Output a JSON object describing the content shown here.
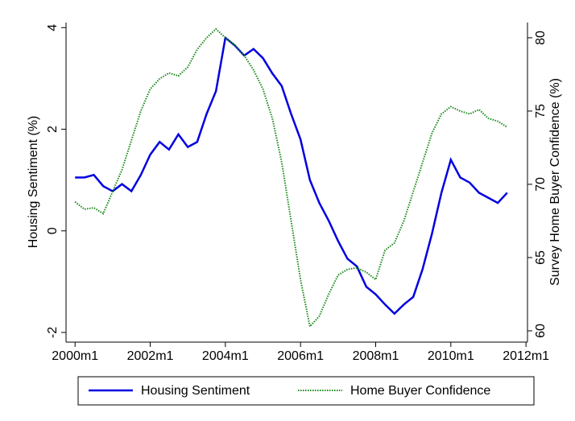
{
  "chart_data": {
    "type": "line",
    "y_label": "Housing Sentiment (%)",
    "y2_label": "Survey Home Buyer Confidence (%)",
    "x": [
      2000,
      2000.25,
      2000.5,
      2000.75,
      2001,
      2001.25,
      2001.5,
      2001.75,
      2002,
      2002.25,
      2002.5,
      2002.75,
      2003,
      2003.25,
      2003.5,
      2003.75,
      2004,
      2004.25,
      2004.5,
      2004.75,
      2005,
      2005.25,
      2005.5,
      2005.75,
      2006,
      2006.25,
      2006.5,
      2006.75,
      2007,
      2007.25,
      2007.5,
      2007.75,
      2008,
      2008.25,
      2008.5,
      2008.75,
      2009,
      2009.25,
      2009.5,
      2009.75,
      2010,
      2010.25,
      2010.5,
      2010.75,
      2011,
      2011.25,
      2011.5
    ],
    "series": [
      {
        "name": "Housing Sentiment",
        "color": "#0000e0",
        "style": "solid",
        "axis": "y",
        "values": [
          1.05,
          1.05,
          1.1,
          0.88,
          0.78,
          0.92,
          0.78,
          1.1,
          1.5,
          1.75,
          1.6,
          1.9,
          1.65,
          1.75,
          2.3,
          2.75,
          3.8,
          3.65,
          3.45,
          3.58,
          3.4,
          3.1,
          2.85,
          2.3,
          1.8,
          1.0,
          0.55,
          0.2,
          -0.2,
          -0.55,
          -0.7,
          -1.1,
          -1.25,
          -1.45,
          -1.63,
          -1.45,
          -1.3,
          -0.75,
          -0.05,
          0.75,
          1.4,
          1.05,
          0.95,
          0.75,
          0.65,
          0.55,
          0.75
        ]
      },
      {
        "name": "Home Buyer Confidence",
        "color": "#1a8a1a",
        "style": "dotted",
        "axis": "y2",
        "values": [
          68.8,
          68.3,
          68.4,
          68.0,
          69.5,
          71,
          73,
          75,
          76.5,
          77.2,
          77.6,
          77.4,
          78,
          79.2,
          80,
          80.6,
          80.0,
          79.5,
          78.8,
          77.8,
          76.5,
          74.5,
          71.5,
          67.5,
          63.5,
          60.3,
          61.0,
          62.5,
          63.8,
          64.2,
          64.3,
          64.0,
          63.5,
          65.5,
          66,
          67.5,
          69.5,
          71.5,
          73.5,
          74.8,
          75.3,
          75,
          74.8,
          75.1,
          74.5,
          74.3,
          73.9
        ]
      }
    ],
    "xlim": [
      1999.76,
      2012.04
    ],
    "xticks": [
      {
        "value": 2000,
        "label": "2000m1"
      },
      {
        "value": 2002,
        "label": "2002m1"
      },
      {
        "value": 2004,
        "label": "2004m1"
      },
      {
        "value": 2006,
        "label": "2006m1"
      },
      {
        "value": 2008,
        "label": "2008m1"
      },
      {
        "value": 2010,
        "label": "2010m1"
      },
      {
        "value": 2012,
        "label": "2012m1"
      }
    ],
    "ylim": [
      -2.19,
      4.1
    ],
    "yticks": [
      -2,
      0,
      2,
      4
    ],
    "y2lim": [
      59.23,
      81.04
    ],
    "y2ticks": [
      60,
      65,
      70,
      75,
      80
    ],
    "grid": false,
    "legend": "bottom"
  }
}
